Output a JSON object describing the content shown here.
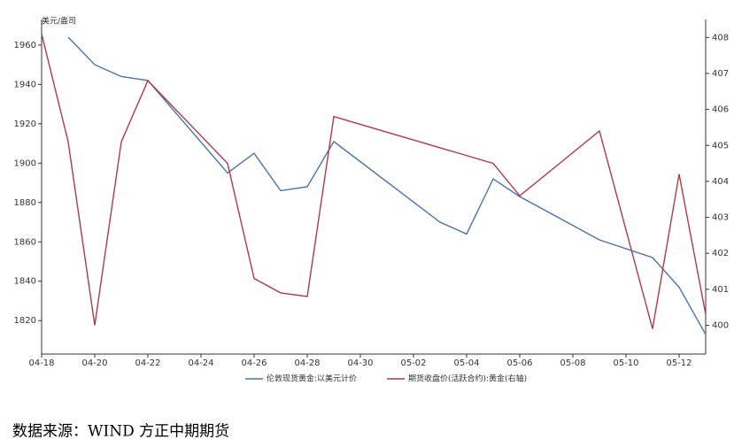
{
  "chart_data": {
    "type": "line",
    "ylabel": "美元/盎司",
    "xlim": [
      "04-18",
      "05-13"
    ],
    "xticks": [
      "04-18",
      "04-20",
      "04-22",
      "04-24",
      "04-26",
      "04-28",
      "04-30",
      "05-02",
      "05-04",
      "05-06",
      "05-08",
      "05-10",
      "05-12"
    ],
    "ylim": [
      1803,
      1973
    ],
    "yticks": [
      1820,
      1840,
      1860,
      1880,
      1900,
      1920,
      1940,
      1960
    ],
    "y2lim": [
      399.2,
      408.5
    ],
    "y2ticks": [
      400,
      401,
      402,
      403,
      404,
      405,
      406,
      407,
      408
    ],
    "legend": "bottom",
    "series": [
      {
        "name": "伦敦现货黄金:以美元计价",
        "color": "#4a72a8",
        "x": [
          "04-19",
          "04-20",
          "04-21",
          "04-22",
          "04-25",
          "04-26",
          "04-27",
          "04-28",
          "04-29",
          "05-03",
          "05-04",
          "05-05",
          "05-06",
          "05-09",
          "05-11",
          "05-12",
          "05-13"
        ],
        "values": [
          1964,
          1950,
          1944,
          1942,
          1895,
          1905,
          1886,
          1888,
          1911,
          1870,
          1864,
          1892,
          1883,
          1861,
          1852,
          1837,
          1813
        ]
      },
      {
        "name": "期货收盘价(活跃合约):黄金(右轴)",
        "color": "#b03a48",
        "axis": "y2",
        "x": [
          "04-18",
          "04-19",
          "04-20",
          "04-21",
          "04-22",
          "04-25",
          "04-26",
          "04-27",
          "04-28",
          "04-29",
          "05-05",
          "05-06",
          "05-09",
          "05-11",
          "05-12",
          "05-13"
        ],
        "values": [
          408.1,
          405.1,
          400.0,
          405.1,
          406.8,
          404.5,
          401.3,
          400.9,
          400.8,
          405.8,
          404.5,
          403.6,
          405.4,
          399.9,
          404.2,
          400.3
        ]
      }
    ],
    "source": "数据来源：WIND 方正中期期货"
  }
}
